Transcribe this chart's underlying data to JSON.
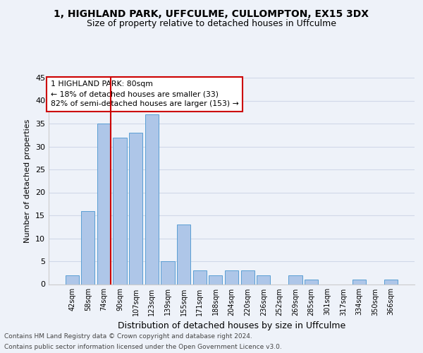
{
  "title_line1": "1, HIGHLAND PARK, UFFCULME, CULLOMPTON, EX15 3DX",
  "title_line2": "Size of property relative to detached houses in Uffculme",
  "xlabel": "Distribution of detached houses by size in Uffculme",
  "ylabel": "Number of detached properties",
  "categories": [
    "42sqm",
    "58sqm",
    "74sqm",
    "90sqm",
    "107sqm",
    "123sqm",
    "139sqm",
    "155sqm",
    "171sqm",
    "188sqm",
    "204sqm",
    "220sqm",
    "236sqm",
    "252sqm",
    "269sqm",
    "285sqm",
    "301sqm",
    "317sqm",
    "334sqm",
    "350sqm",
    "366sqm"
  ],
  "bar_values": [
    2,
    16,
    35,
    32,
    33,
    37,
    5,
    13,
    3,
    2,
    3,
    3,
    2,
    0,
    2,
    1,
    0,
    0,
    1,
    0,
    1
  ],
  "bar_color": "#aec6e8",
  "bar_edge_color": "#5a9fd4",
  "annotation_line1": "1 HIGHLAND PARK: 80sqm",
  "annotation_line2": "← 18% of detached houses are smaller (33)",
  "annotation_line3": "82% of semi-detached houses are larger (153) →",
  "vline_color": "#cc0000",
  "grid_color": "#d0d8e8",
  "ylim": [
    0,
    45
  ],
  "yticks": [
    0,
    5,
    10,
    15,
    20,
    25,
    30,
    35,
    40,
    45
  ],
  "footer_line1": "Contains HM Land Registry data © Crown copyright and database right 2024.",
  "footer_line2": "Contains public sector information licensed under the Open Government Licence v3.0.",
  "background_color": "#eef2f9"
}
